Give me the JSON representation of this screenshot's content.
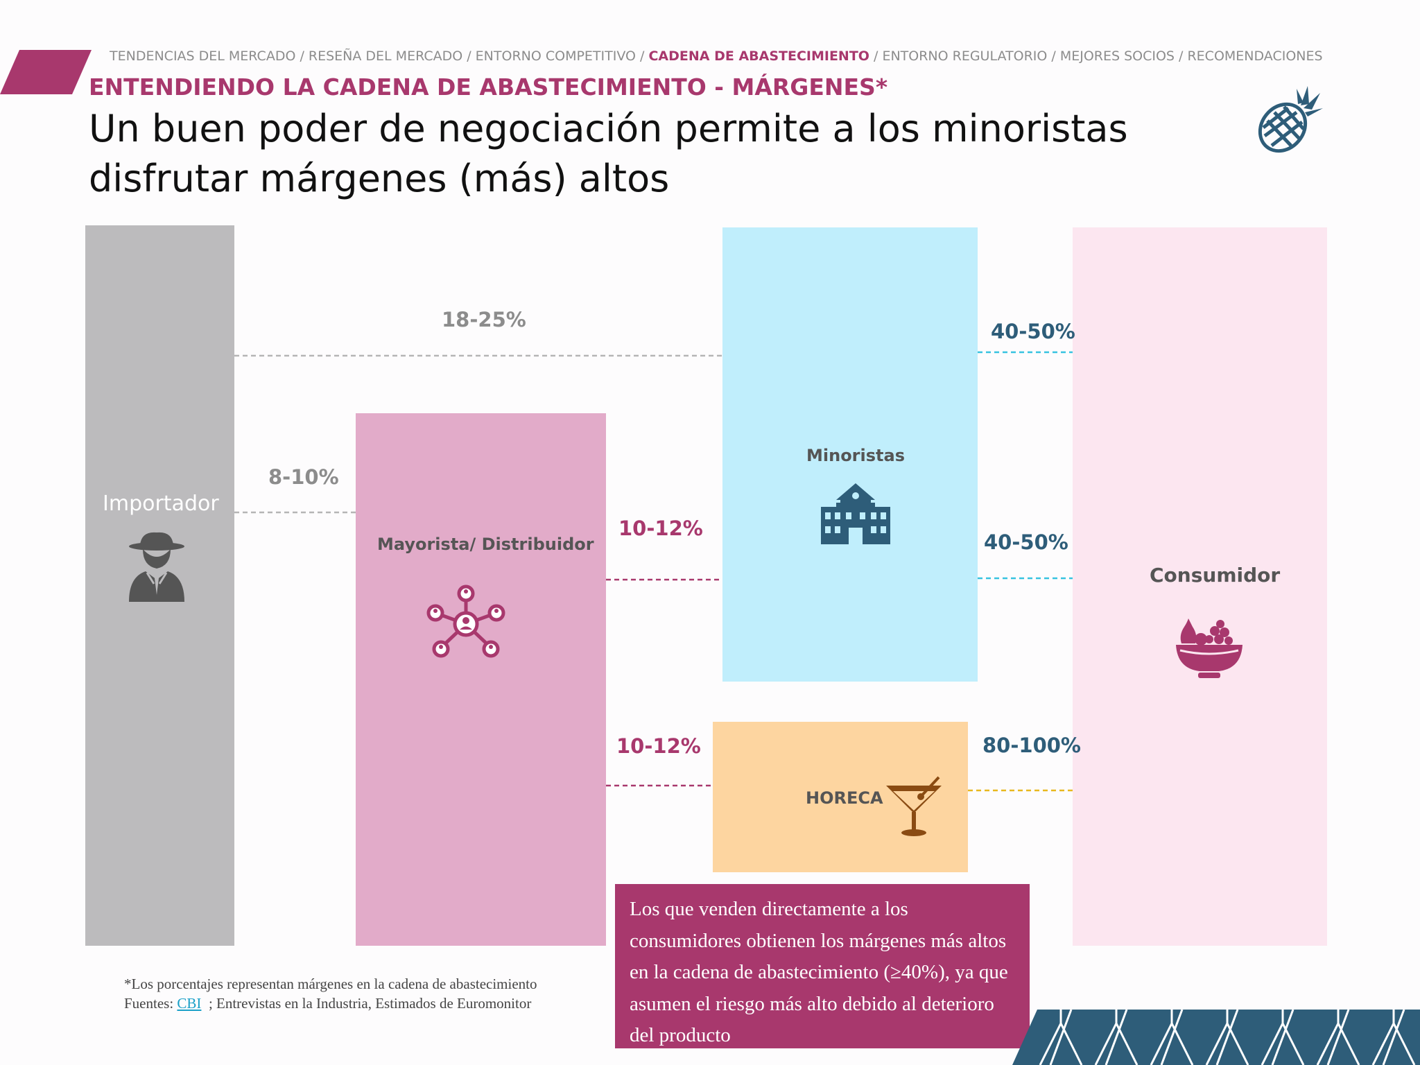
{
  "nav": {
    "items": [
      {
        "label": "TENDENCIAS DEL MERCADO",
        "active": false
      },
      {
        "label": "RESEÑA DEL MERCADO",
        "active": false
      },
      {
        "label": "ENTORNO COMPETITIVO",
        "active": false
      },
      {
        "label": "CADENA DE ABASTECIMIENTO",
        "active": true
      },
      {
        "label": "ENTORNO REGULATORIO",
        "active": false
      },
      {
        "label": "MEJORES SOCIOS",
        "active": false
      },
      {
        "label": "RECOMENDACIONES",
        "active": false
      }
    ],
    "separator": " / "
  },
  "header": {
    "kicker": "ENTENDIENDO LA CADENA DE ABASTECIMIENTO - MÁRGENES*",
    "title": "Un buen poder de negociación permite a los minoristas disfrutar márgenes (más) altos",
    "logo_icon": "pineapple-icon"
  },
  "chain": {
    "importador": {
      "label": "Importador",
      "icon": "spy-person-icon",
      "color": "#bcbbbd"
    },
    "mayorista": {
      "label": "Mayorista/ Distribuidor",
      "icon": "network-hub-icon",
      "color": "#e2abc9"
    },
    "minoristas": {
      "label": "Minoristas",
      "icon": "school-building-icon",
      "color": "#c0eefc"
    },
    "horeca": {
      "label": "HORECA",
      "icon": "cocktail-glass-icon",
      "color": "#fdd5a0"
    },
    "consumidor": {
      "label": "Consumidor",
      "icon": "fruit-bowl-icon",
      "color": "#fce6f0"
    }
  },
  "margins": {
    "importador_minoristas": "18-25%",
    "importador_mayorista": "8-10%",
    "mayorista_minoristas": "10-12%",
    "mayorista_horeca": "10-12%",
    "minoristas_consumidor_top": "40-50%",
    "minoristas_consumidor_mid": "40-50%",
    "horeca_consumidor": "80-100%"
  },
  "colors": {
    "accent": "#a8386d",
    "teal_dark": "#2e5d79",
    "gray_text": "#8c8c8c"
  },
  "callout": "Los que venden directamente a los consumidores obtienen los márgenes más altos en la cadena de abastecimiento (≥40%), ya que asumen el riesgo más alto debido al deterioro del producto",
  "footnote": {
    "note": "*Los porcentajes representan márgenes en la cadena de abastecimiento",
    "sources_prefix": "Fuentes: ",
    "link_text": "CBI",
    "sources_rest": "  ; Entrevistas en la Industria, Estimados de Euromonitor"
  }
}
